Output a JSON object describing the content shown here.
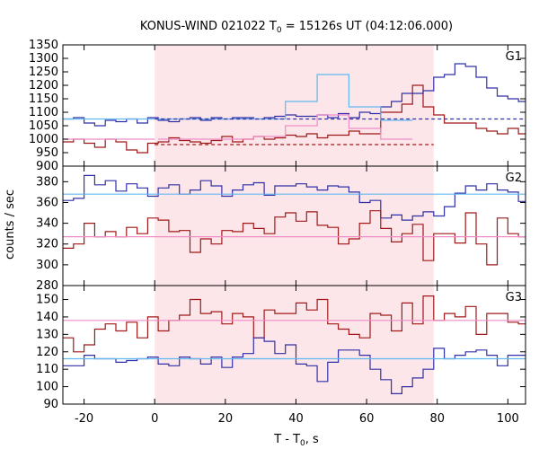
{
  "chart_data": {
    "type": "line",
    "title": "KONUS-WIND 021022 T",
    "title_sub": "0",
    "title_rest": " = 15126s UT (04:12:06.000)",
    "xlabel": "T - T",
    "xlabel_sub": "0",
    "xlabel_rest": ", s",
    "ylabel": "counts / sec",
    "xlim": [
      -26,
      105
    ],
    "xticks": [
      -20,
      0,
      20,
      40,
      60,
      80,
      100
    ],
    "x_tick_labels": [
      "-20",
      "0",
      "20",
      "40",
      "60",
      "80",
      "100"
    ],
    "highlight_interval": [
      0,
      79
    ],
    "colors": {
      "red": "#a01818",
      "blue": "#3030a8",
      "pink": "#f08cc8",
      "lightblue": "#60b8f0",
      "shade": "#fde6e9"
    },
    "panels": [
      {
        "name": "G1",
        "ylim": [
          900,
          1350
        ],
        "yticks": [
          900,
          950,
          1000,
          1050,
          1100,
          1150,
          1200,
          1250,
          1300,
          1350
        ],
        "ytick_labels": [
          "900",
          "950",
          "1000",
          "1050",
          "1100",
          "1150",
          "1200",
          "1250",
          "1300",
          "1350"
        ],
        "series": [
          {
            "color": "red",
            "kind": "step",
            "x0": -26,
            "width": 3,
            "values": [
              990,
              1000,
              985,
              970,
              1000,
              990,
              960,
              950,
              985,
              990,
              1005,
              995,
              990,
              985,
              995,
              1010,
              990,
              1000,
              1010,
              1000,
              1005,
              1015,
              1010,
              1020,
              1005,
              1015,
              1015,
              1030,
              1020,
              1020,
              1100,
              1100,
              1130,
              1200,
              1120,
              1090,
              1060,
              1060,
              1060,
              1040,
              1030,
              1020,
              1040,
              1020,
              1000,
              1020,
              1005,
              1005,
              1015,
              1010,
              990,
              995,
              1005,
              1000,
              985,
              1005,
              995,
              980,
              995,
              980,
              990,
              1000,
              990,
              980,
              995,
              980,
              970,
              980,
              975,
              990,
              1000,
              1010,
              990,
              1000
            ]
          },
          {
            "color": "blue",
            "kind": "step",
            "x0": -26,
            "width": 3,
            "values": [
              1075,
              1080,
              1060,
              1050,
              1070,
              1065,
              1075,
              1060,
              1080,
              1070,
              1065,
              1075,
              1080,
              1070,
              1080,
              1075,
              1080,
              1080,
              1075,
              1080,
              1085,
              1090,
              1085,
              1085,
              1090,
              1080,
              1095,
              1080,
              1100,
              1095,
              1120,
              1140,
              1170,
              1170,
              1180,
              1230,
              1240,
              1280,
              1270,
              1230,
              1190,
              1160,
              1150,
              1140,
              1120,
              1120,
              1120,
              1110,
              1080,
              1085,
              1075,
              1070,
              1080,
              1050,
              1060,
              1070,
              1030,
              1060,
              1050,
              1030,
              1060,
              1010,
              1070,
              1040,
              1060,
              1040,
              1060,
              1050,
              1060,
              1040,
              1050,
              1050,
              1040,
              1060
            ]
          },
          {
            "color": "pink",
            "kind": "step",
            "x0": -26,
            "width": 9,
            "values": [
              null,
              null,
              null,
              1000,
              1000,
              1000,
              1010,
              1050,
              1090,
              1040,
              1000,
              null,
              null,
              null,
              null
            ]
          },
          {
            "color": "lightblue",
            "kind": "step",
            "x0": -26,
            "width": 9,
            "values": [
              null,
              null,
              null,
              1075,
              1075,
              1075,
              1075,
              1140,
              1240,
              1120,
              1070,
              null,
              null,
              null,
              null
            ]
          },
          {
            "color": "red",
            "kind": "dashed",
            "points": [
              [
                0,
                980
              ],
              [
                79,
                980
              ]
            ]
          },
          {
            "color": "blue",
            "kind": "dashed",
            "points": [
              [
                0,
                1075
              ],
              [
                105,
                1075
              ]
            ]
          },
          {
            "color": "pink",
            "kind": "line",
            "points": [
              [
                -26,
                1000
              ],
              [
                0,
                1000
              ]
            ]
          },
          {
            "color": "lightblue",
            "kind": "line",
            "points": [
              [
                -26,
                1075
              ],
              [
                0,
                1075
              ]
            ]
          }
        ]
      },
      {
        "name": "G2",
        "ylim": [
          280,
          395
        ],
        "yticks": [
          280,
          300,
          320,
          340,
          360,
          380
        ],
        "ytick_labels": [
          "280",
          "300",
          "320",
          "340",
          "360",
          "380"
        ],
        "series": [
          {
            "color": "blue",
            "kind": "step",
            "x0": -26,
            "width": 3,
            "values": [
              362,
              364,
              386,
              377,
              381,
              371,
              378,
              374,
              366,
              374,
              377,
              368,
              372,
              381,
              376,
              366,
              372,
              377,
              379,
              367,
              376,
              376,
              378,
              375,
              372,
              376,
              375,
              370,
              360,
              362,
              345,
              348,
              343,
              347,
              351,
              347,
              356,
              369,
              376,
              372,
              378,
              372,
              370,
              361,
              351,
              348,
              373,
              371,
              371,
              372,
              357,
              365,
              371,
              373,
              365,
              372,
              377,
              359,
              370,
              373,
              380,
              375,
              363,
              366,
              369,
              371,
              373,
              361,
              365,
              368,
              364,
              362,
              373,
              375
            ]
          },
          {
            "color": "red",
            "kind": "step",
            "x0": -26,
            "width": 3,
            "values": [
              316,
              320,
              340,
              327,
              332,
              327,
              336,
              330,
              345,
              343,
              332,
              333,
              312,
              325,
              320,
              333,
              332,
              340,
              335,
              330,
              346,
              350,
              342,
              351,
              338,
              336,
              320,
              325,
              340,
              352,
              335,
              322,
              330,
              339,
              304,
              330,
              330,
              321,
              350,
              320,
              300,
              345,
              330,
              327,
              328,
              325,
              322,
              321,
              327,
              328,
              327,
              333,
              322,
              340,
              336,
              330,
              343,
              323,
              307,
              318,
              340,
              325,
              302,
              318,
              333,
              320,
              328,
              338,
              325,
              315,
              330,
              335,
              338,
              335
            ]
          },
          {
            "color": "lightblue",
            "kind": "line",
            "points": [
              [
                -26,
                368
              ],
              [
                105,
                368
              ]
            ]
          },
          {
            "color": "pink",
            "kind": "line",
            "points": [
              [
                -26,
                327
              ],
              [
                105,
                327
              ]
            ]
          }
        ]
      },
      {
        "name": "G3",
        "ylim": [
          90,
          158
        ],
        "yticks": [
          90,
          100,
          110,
          120,
          130,
          140,
          150
        ],
        "ytick_labels": [
          "90",
          "100",
          "110",
          "120",
          "130",
          "140",
          "150"
        ],
        "series": [
          {
            "color": "red",
            "kind": "step",
            "x0": -26,
            "width": 3,
            "values": [
              128,
              120,
              124,
              133,
              136,
              132,
              137,
              128,
              140,
              132,
              138,
              141,
              150,
              142,
              143,
              136,
              142,
              140,
              128,
              144,
              142,
              142,
              148,
              144,
              150,
              136,
              133,
              130,
              128,
              142,
              141,
              132,
              148,
              136,
              152,
              138,
              142,
              140,
              146,
              130,
              142,
              142,
              137,
              136,
              141,
              140,
              142,
              136,
              142,
              142,
              146,
              150,
              150,
              140,
              128,
              144,
              141,
              141,
              140,
              140,
              146,
              140,
              132,
              133,
              129,
              136,
              142,
              132,
              140,
              148,
              137,
              140,
              141,
              140
            ]
          },
          {
            "color": "blue",
            "kind": "step",
            "x0": -26,
            "width": 3,
            "values": [
              112,
              112,
              118,
              116,
              116,
              114,
              115,
              116,
              117,
              113,
              112,
              117,
              116,
              113,
              117,
              111,
              117,
              119,
              128,
              126,
              119,
              124,
              113,
              112,
              103,
              114,
              121,
              121,
              118,
              110,
              104,
              96,
              100,
              105,
              110,
              122,
              116,
              118,
              120,
              121,
              118,
              112,
              118,
              118,
              106,
              109,
              123,
              125,
              123,
              124,
              122,
              118,
              115,
              117,
              111,
              120,
              118,
              116,
              113,
              118,
              119,
              112,
              116,
              121,
              117,
              116,
              118,
              112,
              114,
              115,
              116,
              118,
              115,
              117
            ]
          },
          {
            "color": "pink",
            "kind": "line",
            "points": [
              [
                -26,
                138
              ],
              [
                105,
                138
              ]
            ]
          },
          {
            "color": "lightblue",
            "kind": "line",
            "points": [
              [
                -26,
                116
              ],
              [
                105,
                116
              ]
            ]
          }
        ]
      }
    ]
  }
}
